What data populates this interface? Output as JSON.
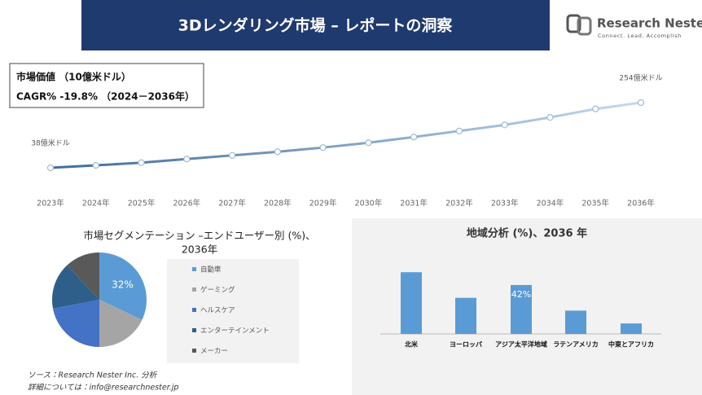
{
  "header": {
    "title": "3Dレンダリング市場 – レポートの洞察"
  },
  "logo": {
    "name": "Research Nester",
    "tagline": "Connect. Lead. Accomplish"
  },
  "summary": {
    "line1": "市場価値 （10億米ドル）",
    "line2": "CAGR% -19.8% （2024－2036年）"
  },
  "chart_data": [
    {
      "type": "line",
      "categories": [
        "2023年",
        "2024年",
        "2025年",
        "2026年",
        "2027年",
        "2028年",
        "2029年",
        "2030年",
        "2031年",
        "2032年",
        "2033年",
        "2034年",
        "2035年",
        "2036年"
      ],
      "series": [
        {
          "color": "#3f6d9a",
          "end_color": "#c5d9ec",
          "values": [
            38,
            46,
            55,
            67,
            79,
            91,
            105,
            121,
            140,
            160,
            180,
            205,
            233,
            254
          ],
          "value_labels": [
            "38億米ドル",
            null,
            null,
            null,
            null,
            null,
            null,
            null,
            null,
            null,
            null,
            null,
            null,
            "254億米ドル"
          ]
        }
      ]
    },
    {
      "type": "pie",
      "title": [
        "市場セグメンテーション –エンドユーザー別 (%)、",
        "2036年"
      ],
      "categories": [
        "自動車",
        "ゲーミング",
        "ヘルスケア",
        "エンターテインメント",
        "メーカー"
      ],
      "values": [
        32,
        18,
        22,
        16,
        12
      ],
      "value_labels": [
        "32%",
        null,
        null,
        null,
        null
      ],
      "colors": [
        "#5b9bd5",
        "#a5a5a5",
        "#4472c4",
        "#2e5f8a",
        "#595959"
      ]
    },
    {
      "type": "bar",
      "title": "地域分析 (%)、2036 年",
      "categories": [
        "北米",
        "ヨーロッパ",
        "アジア太平洋地域",
        "ラテンアメリカ",
        "中東とアフリカ"
      ],
      "values": [
        53,
        31,
        42,
        20,
        9
      ],
      "value_labels": [
        null,
        null,
        "42%",
        null,
        null
      ],
      "color": "#5b9bd5"
    }
  ],
  "footer": {
    "source": "ソース：Research Nester Inc. 分析",
    "contact": "詳細については：info@researchnester.jp"
  }
}
